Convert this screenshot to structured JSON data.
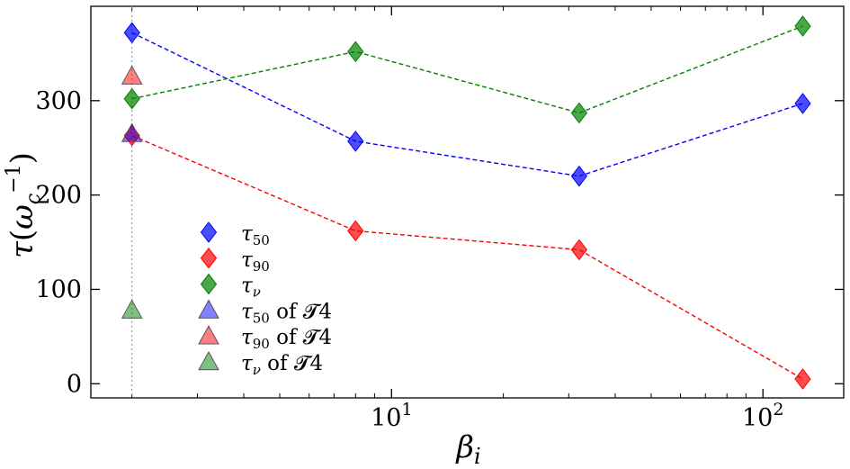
{
  "chart_data": {
    "type": "scatter",
    "xscale": "log",
    "xlim": [
      1.55,
      165
    ],
    "ylim": [
      -15,
      400
    ],
    "xlabel": "βi",
    "ylabel": "τ(ωc⁻¹)",
    "xticks": [
      {
        "value": 10,
        "base": "10",
        "exp": "1"
      },
      {
        "value": 100,
        "base": "10",
        "exp": "2"
      }
    ],
    "yticks": [
      0,
      100,
      200,
      300
    ],
    "vline": {
      "x": 2.0,
      "style": "dotted",
      "color": "#999999"
    },
    "series": [
      {
        "name": "τ50",
        "marker": "diamond",
        "color": "#0000ff",
        "line": "dashed",
        "x": [
          2,
          8,
          32,
          128
        ],
        "y": [
          372,
          257,
          220,
          297
        ]
      },
      {
        "name": "τ90",
        "marker": "diamond",
        "color": "#ff0000",
        "line": "dashed",
        "x": [
          2,
          8,
          32,
          128
        ],
        "y": [
          263,
          162,
          142,
          5
        ]
      },
      {
        "name": "τν",
        "marker": "diamond",
        "color": "#008000",
        "line": "dashed",
        "x": [
          2,
          8,
          32,
          128
        ],
        "y": [
          302,
          352,
          287,
          379
        ]
      },
      {
        "name": "τ50 of 𝓣4",
        "marker": "triangle",
        "color": "#0000ff",
        "line": "none",
        "x": [
          2
        ],
        "y": [
          265
        ]
      },
      {
        "name": "τ90 of 𝓣4",
        "marker": "triangle",
        "color": "#ff0000",
        "line": "none",
        "x": [
          2
        ],
        "y": [
          326
        ]
      },
      {
        "name": "τν of 𝓣4",
        "marker": "triangle",
        "color": "#008000",
        "line": "none",
        "x": [
          2
        ],
        "y": [
          78
        ]
      }
    ],
    "legend": {
      "placement": "lower-left",
      "entries": [
        {
          "sym": "τ",
          "sub": "50",
          "suffix": ""
        },
        {
          "sym": "τ",
          "sub": "90",
          "suffix": ""
        },
        {
          "sym": "τ",
          "sub": "ν",
          "suffix": ""
        },
        {
          "sym": "τ",
          "sub": "50",
          "suffix": " of 𝓣4"
        },
        {
          "sym": "τ",
          "sub": "90",
          "suffix": " of 𝓣4"
        },
        {
          "sym": "τ",
          "sub": "ν",
          "suffix": " of 𝓣4"
        }
      ]
    }
  }
}
